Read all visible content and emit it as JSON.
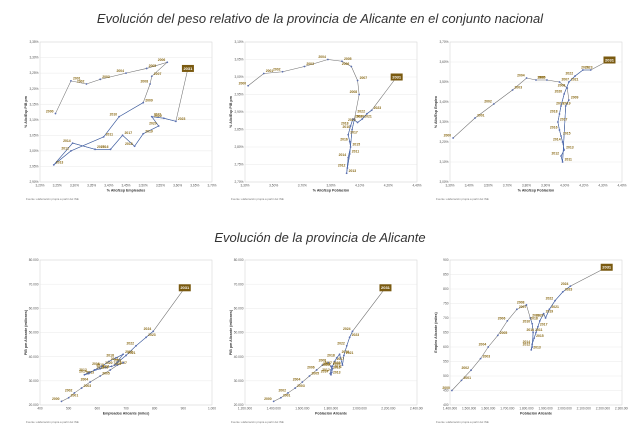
{
  "titles": {
    "top": "Evolución del peso relativo de la provincia de Alicante en el conjunto nacional",
    "bottom": "Evolución de la provincia de Alicante"
  },
  "source_note": "Fuente: elaboración propia a partir del INE",
  "chart_data": [
    {
      "type": "line",
      "id": "c1",
      "xlabel": "% Alic/Esp Empleados",
      "ylabel": "% Alic/Esp PIB pm",
      "xticks": [
        "3,20%",
        "3,25%",
        "3,30%",
        "3,35%",
        "3,40%",
        "3,45%",
        "3,50%",
        "3,55%",
        "3,60%",
        "3,65%",
        "3,70%"
      ],
      "yticks": [
        "2,90%",
        "2,95%",
        "3,00%",
        "3,05%",
        "3,10%",
        "3,15%",
        "3,20%",
        "3,25%",
        "3,30%",
        "3,35%"
      ],
      "xlim": [
        3.2,
        3.7
      ],
      "ylim": [
        2.9,
        3.35
      ],
      "highlight": "2031",
      "points": [
        {
          "label": "2000",
          "x": 3.245,
          "y": 3.12
        },
        {
          "label": "2001",
          "x": 3.29,
          "y": 3.225
        },
        {
          "label": "2002",
          "x": 3.335,
          "y": 3.215
        },
        {
          "label": "2003",
          "x": 3.375,
          "y": 3.23
        },
        {
          "label": "2004",
          "x": 3.45,
          "y": 3.25
        },
        {
          "label": "2005",
          "x": 3.51,
          "y": 3.265
        },
        {
          "label": "2006",
          "x": 3.57,
          "y": 3.285
        },
        {
          "label": "2007",
          "x": 3.525,
          "y": 3.24
        },
        {
          "label": "2008",
          "x": 3.52,
          "y": 3.215
        },
        {
          "label": "2009",
          "x": 3.5,
          "y": 3.155
        },
        {
          "label": "2010",
          "x": 3.43,
          "y": 3.11
        },
        {
          "label": "2011",
          "x": 3.385,
          "y": 3.045
        },
        {
          "label": "2012",
          "x": 3.29,
          "y": 3.0
        },
        {
          "label": "2013",
          "x": 3.24,
          "y": 2.955
        },
        {
          "label": "2014",
          "x": 3.295,
          "y": 3.025
        },
        {
          "label": "2015",
          "x": 3.36,
          "y": 3.005
        },
        {
          "label": "2016",
          "x": 3.405,
          "y": 3.005
        },
        {
          "label": "2017",
          "x": 3.44,
          "y": 3.05
        },
        {
          "label": "2018",
          "x": 3.475,
          "y": 3.015
        },
        {
          "label": "2019",
          "x": 3.5,
          "y": 3.055
        },
        {
          "label": "2020",
          "x": 3.545,
          "y": 3.08
        },
        {
          "label": "2021",
          "x": 3.525,
          "y": 3.11
        },
        {
          "label": "2022",
          "x": 3.56,
          "y": 3.105
        },
        {
          "label": "2023",
          "x": 3.595,
          "y": 3.095
        },
        {
          "label": "2031",
          "x": 3.63,
          "y": 3.265
        }
      ]
    },
    {
      "type": "line",
      "id": "c2",
      "xlabel": "% Alic/Esp Población",
      "ylabel": "% Alic/Esp PIB pm",
      "xticks": [
        "3,30%",
        "3,50%",
        "3,70%",
        "3,90%",
        "4,10%",
        "4,20%",
        "4,40%"
      ],
      "yticks": [
        "2,70%",
        "2,75%",
        "2,80%",
        "2,85%",
        "2,90%",
        "2,95%",
        "3,00%",
        "3,05%",
        "3,10%"
      ],
      "xlim": [
        3.3,
        4.4
      ],
      "ylim": [
        2.7,
        3.1
      ],
      "highlight": "2031",
      "points": [
        {
          "label": "2000",
          "x": 3.32,
          "y": 2.975
        },
        {
          "label": "2001",
          "x": 3.42,
          "y": 3.01
        },
        {
          "label": "2002",
          "x": 3.54,
          "y": 3.015
        },
        {
          "label": "2003",
          "x": 3.68,
          "y": 3.03
        },
        {
          "label": "2004",
          "x": 3.83,
          "y": 3.05
        },
        {
          "label": "2005",
          "x": 3.92,
          "y": 3.045
        },
        {
          "label": "2006",
          "x": 3.98,
          "y": 3.03
        },
        {
          "label": "2007",
          "x": 4.02,
          "y": 2.99
        },
        {
          "label": "2008",
          "x": 4.03,
          "y": 2.95
        },
        {
          "label": "2009",
          "x": 4.0,
          "y": 2.88
        },
        {
          "label": "2010",
          "x": 3.985,
          "y": 2.85
        },
        {
          "label": "2011",
          "x": 3.97,
          "y": 2.78
        },
        {
          "label": "2012",
          "x": 3.955,
          "y": 2.74
        },
        {
          "label": "2013",
          "x": 3.95,
          "y": 2.725
        },
        {
          "label": "2014",
          "x": 3.96,
          "y": 2.77
        },
        {
          "label": "2015",
          "x": 3.975,
          "y": 2.8
        },
        {
          "label": "2016",
          "x": 3.97,
          "y": 2.815
        },
        {
          "label": "2017",
          "x": 3.96,
          "y": 2.835
        },
        {
          "label": "2018",
          "x": 3.975,
          "y": 2.86
        },
        {
          "label": "2019",
          "x": 3.99,
          "y": 2.88
        },
        {
          "label": "2020",
          "x": 4.02,
          "y": 2.87
        },
        {
          "label": "2021",
          "x": 4.05,
          "y": 2.88
        },
        {
          "label": "2022",
          "x": 4.08,
          "y": 2.895
        },
        {
          "label": "2023",
          "x": 4.11,
          "y": 2.905
        },
        {
          "label": "2031",
          "x": 4.27,
          "y": 3.0
        }
      ]
    },
    {
      "type": "line",
      "id": "c3",
      "xlabel": "% Alic/Esp Población",
      "ylabel": "% Alic/Esp Empleo",
      "xticks": [
        "3,30%",
        "3,40%",
        "3,50%",
        "3,70%",
        "3,80%",
        "3,90%",
        "4,00%",
        "4,20%",
        "4,30%",
        "4,40%"
      ],
      "yticks": [
        "3,00%",
        "3,10%",
        "3,20%",
        "3,30%",
        "3,40%",
        "3,50%",
        "3,60%",
        "3,70%"
      ],
      "xlim": [
        3.3,
        4.4
      ],
      "ylim": [
        3.0,
        3.7
      ],
      "highlight": "2031",
      "points": [
        {
          "label": "2000",
          "x": 3.32,
          "y": 3.22
        },
        {
          "label": "2001",
          "x": 3.46,
          "y": 3.32
        },
        {
          "label": "2002",
          "x": 3.58,
          "y": 3.39
        },
        {
          "label": "2003",
          "x": 3.7,
          "y": 3.46
        },
        {
          "label": "2004",
          "x": 3.79,
          "y": 3.52
        },
        {
          "label": "2005",
          "x": 3.85,
          "y": 3.51
        },
        {
          "label": "2006",
          "x": 3.92,
          "y": 3.51
        },
        {
          "label": "2007",
          "x": 4.0,
          "y": 3.5
        },
        {
          "label": "2008",
          "x": 4.05,
          "y": 3.47
        },
        {
          "label": "2009",
          "x": 4.06,
          "y": 3.41
        },
        {
          "label": "2010",
          "x": 4.04,
          "y": 3.38
        },
        {
          "label": "2011",
          "x": 4.02,
          "y": 3.1
        },
        {
          "label": "2012",
          "x": 4.01,
          "y": 3.13
        },
        {
          "label": "2013",
          "x": 4.03,
          "y": 3.16
        },
        {
          "label": "2014",
          "x": 4.02,
          "y": 3.2
        },
        {
          "label": "2015",
          "x": 4.01,
          "y": 3.23
        },
        {
          "label": "2016",
          "x": 4.0,
          "y": 3.26
        },
        {
          "label": "2017",
          "x": 3.99,
          "y": 3.3
        },
        {
          "label": "2018",
          "x": 4.0,
          "y": 3.34
        },
        {
          "label": "2019",
          "x": 4.01,
          "y": 3.38
        },
        {
          "label": "2020",
          "x": 4.03,
          "y": 3.44
        },
        {
          "label": "2021",
          "x": 4.06,
          "y": 3.5
        },
        {
          "label": "2022",
          "x": 4.1,
          "y": 3.53
        },
        {
          "label": "2023",
          "x": 4.15,
          "y": 3.56
        },
        {
          "label": "2024",
          "x": 4.2,
          "y": 3.56
        },
        {
          "label": "2031",
          "x": 4.32,
          "y": 3.61
        }
      ]
    },
    {
      "type": "line",
      "id": "c4",
      "xlabel": "Empleados Alicante (miles)",
      "ylabel": "PIB pm Alicante (millones)",
      "xticks": [
        "400",
        "500",
        "600",
        "700",
        "800",
        "900",
        "1.000"
      ],
      "yticks": [
        "20.000",
        "30.000",
        "40.000",
        "50.000",
        "60.000",
        "70.000",
        "80.000"
      ],
      "xlim": [
        400,
        1000
      ],
      "ylim": [
        20000,
        80000
      ],
      "highlight": "2031",
      "points": [
        {
          "label": "2000",
          "x": 475,
          "y": 21500
        },
        {
          "label": "2001",
          "x": 500,
          "y": 23000
        },
        {
          "label": "2002",
          "x": 520,
          "y": 25000
        },
        {
          "label": "2003",
          "x": 545,
          "y": 27000
        },
        {
          "label": "2004",
          "x": 575,
          "y": 29500
        },
        {
          "label": "2005",
          "x": 610,
          "y": 32000
        },
        {
          "label": "2006",
          "x": 645,
          "y": 34500
        },
        {
          "label": "2007",
          "x": 670,
          "y": 36500
        },
        {
          "label": "2008",
          "x": 690,
          "y": 37500
        },
        {
          "label": "2009",
          "x": 650,
          "y": 36000
        },
        {
          "label": "2010",
          "x": 630,
          "y": 35500
        },
        {
          "label": "2011",
          "x": 610,
          "y": 35000
        },
        {
          "label": "2012",
          "x": 570,
          "y": 33500
        },
        {
          "label": "2013",
          "x": 555,
          "y": 32500
        },
        {
          "label": "2014",
          "x": 570,
          "y": 33000
        },
        {
          "label": "2015",
          "x": 590,
          "y": 34500
        },
        {
          "label": "2016",
          "x": 615,
          "y": 36000
        },
        {
          "label": "2017",
          "x": 640,
          "y": 38000
        },
        {
          "label": "2018",
          "x": 665,
          "y": 39500
        },
        {
          "label": "2019",
          "x": 690,
          "y": 41000
        },
        {
          "label": "2020",
          "x": 660,
          "y": 36500
        },
        {
          "label": "2021",
          "x": 700,
          "y": 40500
        },
        {
          "label": "2022",
          "x": 735,
          "y": 44500
        },
        {
          "label": "2023",
          "x": 770,
          "y": 48000
        },
        {
          "label": "2024",
          "x": 795,
          "y": 50500
        },
        {
          "label": "2031",
          "x": 905,
          "y": 68500
        }
      ]
    },
    {
      "type": "line",
      "id": "c5",
      "xlabel": "Población Alicante",
      "ylabel": "PIB pm Alicante (millones)",
      "xticks": [
        "1.200.000",
        "1.400.000",
        "1.600.000",
        "1.800.000",
        "2.000.000",
        "2.200.000",
        "2.400.000"
      ],
      "yticks": [
        "20.000",
        "30.000",
        "40.000",
        "50.000",
        "60.000",
        "70.000",
        "80.000"
      ],
      "xlim": [
        1200000,
        2400000
      ],
      "ylim": [
        20000,
        80000
      ],
      "highlight": "2031",
      "points": [
        {
          "label": "2000",
          "x": 1400000,
          "y": 21500
        },
        {
          "label": "2001",
          "x": 1450000,
          "y": 23000
        },
        {
          "label": "2002",
          "x": 1500000,
          "y": 25000
        },
        {
          "label": "2003",
          "x": 1550000,
          "y": 27000
        },
        {
          "label": "2004",
          "x": 1600000,
          "y": 29500
        },
        {
          "label": "2005",
          "x": 1650000,
          "y": 32000
        },
        {
          "label": "2006",
          "x": 1700000,
          "y": 34500
        },
        {
          "label": "2007",
          "x": 1740000,
          "y": 36500
        },
        {
          "label": "2008",
          "x": 1780000,
          "y": 37500
        },
        {
          "label": "2009",
          "x": 1800000,
          "y": 36000
        },
        {
          "label": "2010",
          "x": 1805000,
          "y": 35500
        },
        {
          "label": "2011",
          "x": 1810000,
          "y": 35000
        },
        {
          "label": "2012",
          "x": 1805000,
          "y": 33500
        },
        {
          "label": "2013",
          "x": 1800000,
          "y": 32500
        },
        {
          "label": "2014",
          "x": 1795000,
          "y": 33000
        },
        {
          "label": "2015",
          "x": 1800000,
          "y": 34500
        },
        {
          "label": "2016",
          "x": 1810000,
          "y": 36000
        },
        {
          "label": "2017",
          "x": 1825000,
          "y": 38000
        },
        {
          "label": "2018",
          "x": 1840000,
          "y": 39500
        },
        {
          "label": "2019",
          "x": 1860000,
          "y": 41000
        },
        {
          "label": "2020",
          "x": 1880000,
          "y": 36500
        },
        {
          "label": "2021",
          "x": 1890000,
          "y": 40500
        },
        {
          "label": "2022",
          "x": 1910000,
          "y": 44500
        },
        {
          "label": "2023",
          "x": 1930000,
          "y": 48000
        },
        {
          "label": "2024",
          "x": 1950000,
          "y": 50500
        },
        {
          "label": "2031",
          "x": 2180000,
          "y": 68500
        }
      ]
    },
    {
      "type": "line",
      "id": "c6",
      "xlabel": "Población Alicante",
      "ylabel": "Empleo Alicante (miles)",
      "xticks": [
        "1.400.000",
        "1.500.000",
        "1.600.000",
        "1.700.000",
        "1.800.000",
        "1.900.000",
        "2.000.000",
        "2.100.000",
        "2.200.000",
        "2.300.000"
      ],
      "yticks": [
        "400",
        "450",
        "500",
        "550",
        "600",
        "650",
        "700",
        "750",
        "800",
        "850",
        "900"
      ],
      "xlim": [
        1400000,
        2300000
      ],
      "ylim": [
        400,
        900
      ],
      "highlight": "2031",
      "points": [
        {
          "label": "2000",
          "x": 1410000,
          "y": 450
        },
        {
          "label": "2001",
          "x": 1460000,
          "y": 485
        },
        {
          "label": "2002",
          "x": 1510000,
          "y": 520
        },
        {
          "label": "2003",
          "x": 1560000,
          "y": 560
        },
        {
          "label": "2004",
          "x": 1600000,
          "y": 600
        },
        {
          "label": "2005",
          "x": 1650000,
          "y": 640
        },
        {
          "label": "2006",
          "x": 1700000,
          "y": 690
        },
        {
          "label": "2007",
          "x": 1750000,
          "y": 730
        },
        {
          "label": "2008",
          "x": 1800000,
          "y": 745
        },
        {
          "label": "2009",
          "x": 1820000,
          "y": 700
        },
        {
          "label": "2010",
          "x": 1830000,
          "y": 680
        },
        {
          "label": "2011",
          "x": 1835000,
          "y": 650
        },
        {
          "label": "2012",
          "x": 1830000,
          "y": 600
        },
        {
          "label": "2013",
          "x": 1825000,
          "y": 590
        },
        {
          "label": "2014",
          "x": 1830000,
          "y": 610
        },
        {
          "label": "2015",
          "x": 1840000,
          "y": 630
        },
        {
          "label": "2016",
          "x": 1850000,
          "y": 650
        },
        {
          "label": "2017",
          "x": 1860000,
          "y": 670
        },
        {
          "label": "2018",
          "x": 1870000,
          "y": 690
        },
        {
          "label": "2019",
          "x": 1890000,
          "y": 715
        },
        {
          "label": "2020",
          "x": 1900000,
          "y": 700
        },
        {
          "label": "2021",
          "x": 1920000,
          "y": 730
        },
        {
          "label": "2022",
          "x": 1950000,
          "y": 760
        },
        {
          "label": "2023",
          "x": 1990000,
          "y": 790
        },
        {
          "label": "2024",
          "x": 2030000,
          "y": 810
        },
        {
          "label": "2031",
          "x": 2220000,
          "y": 875
        }
      ]
    }
  ]
}
